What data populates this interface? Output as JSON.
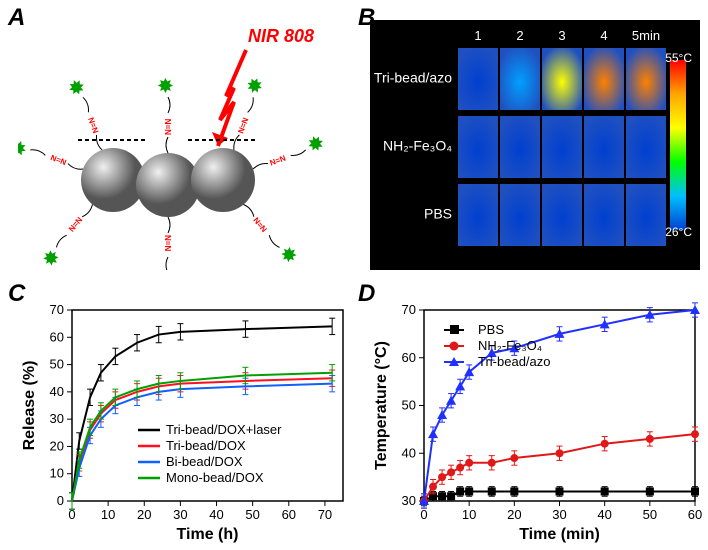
{
  "labels": {
    "A": "A",
    "B": "B",
    "C": "C",
    "D": "D"
  },
  "panelA": {
    "annotation": "NIR 808",
    "annotation_color": "#ff0000",
    "sphere_color": "#888888",
    "nn_color": "#ff0000",
    "star_color": "#00a000"
  },
  "panelB": {
    "background": "#000000",
    "time_labels": [
      "1",
      "2",
      "3",
      "4",
      "5min"
    ],
    "row_labels": [
      "Tri-bead/azo",
      "NH₂-Fe₃O₄",
      "PBS"
    ],
    "colorbar": {
      "max": "55°C",
      "min": "26°C",
      "colors": [
        "#ff0000",
        "#ffa500",
        "#ffff00",
        "#00ff00",
        "#00c0ff",
        "#0040d0"
      ]
    }
  },
  "panelC": {
    "type": "line",
    "xlabel": "Time (h)",
    "ylabel": "Release (%)",
    "xlim": [
      0,
      75
    ],
    "ylim": [
      0,
      70
    ],
    "xticks": [
      0,
      10,
      20,
      30,
      40,
      50,
      60,
      70
    ],
    "yticks": [
      0,
      10,
      20,
      30,
      40,
      50,
      60,
      70
    ],
    "background": "#ffffff",
    "axis_color": "#000000",
    "label_fontsize": 16,
    "tick_fontsize": 13,
    "series": [
      {
        "name": "Tri-bead/DOX+laser",
        "color": "#000000",
        "x": [
          0,
          2,
          5,
          8,
          12,
          18,
          24,
          30,
          48,
          72
        ],
        "y": [
          0,
          22,
          38,
          47,
          53,
          58,
          61,
          62,
          63,
          64
        ],
        "err": 3
      },
      {
        "name": "Tri-bead/DOX",
        "color": "#ff1020",
        "x": [
          0,
          2,
          5,
          8,
          12,
          18,
          24,
          30,
          48,
          72
        ],
        "y": [
          0,
          14,
          26,
          32,
          37,
          40,
          42,
          43,
          44,
          45
        ],
        "err": 3
      },
      {
        "name": "Bi-bead/DOX",
        "color": "#1060ff",
        "x": [
          0,
          2,
          5,
          8,
          12,
          18,
          24,
          30,
          48,
          72
        ],
        "y": [
          0,
          12,
          24,
          30,
          35,
          38,
          40,
          41,
          42,
          43
        ],
        "err": 3
      },
      {
        "name": "Mono-bead/DOX",
        "color": "#00a000",
        "x": [
          0,
          2,
          5,
          8,
          12,
          18,
          24,
          30,
          48,
          72
        ],
        "y": [
          0,
          15,
          27,
          33,
          38,
          41,
          43,
          44,
          46,
          47
        ],
        "err": 3
      }
    ]
  },
  "panelD": {
    "type": "line+markers",
    "xlabel": "Time (min)",
    "ylabel": "Temperature (°C)",
    "xlim": [
      0,
      60
    ],
    "ylim": [
      30,
      70
    ],
    "xticks": [
      0,
      10,
      20,
      30,
      40,
      50,
      60
    ],
    "yticks": [
      30,
      40,
      50,
      60,
      70
    ],
    "background": "#ffffff",
    "axis_color": "#000000",
    "label_fontsize": 16,
    "tick_fontsize": 13,
    "series": [
      {
        "name": "PBS",
        "color": "#000000",
        "marker": "square",
        "x": [
          0,
          2,
          4,
          6,
          8,
          10,
          15,
          20,
          30,
          40,
          50,
          60
        ],
        "y": [
          30,
          31,
          31,
          31,
          32,
          32,
          32,
          32,
          32,
          32,
          32,
          32
        ],
        "err": 1
      },
      {
        "name": "NH₂-Fe₃O₄",
        "color": "#e01818",
        "marker": "circle",
        "x": [
          0,
          2,
          4,
          6,
          8,
          10,
          15,
          20,
          30,
          40,
          50,
          60
        ],
        "y": [
          30,
          33,
          35,
          36,
          37,
          38,
          38,
          39,
          40,
          42,
          43,
          44
        ],
        "err": 1.5
      },
      {
        "name": "Tri-bead/azo",
        "color": "#2030ff",
        "marker": "triangle",
        "x": [
          0,
          2,
          4,
          6,
          8,
          10,
          15,
          20,
          30,
          40,
          50,
          60
        ],
        "y": [
          30,
          44,
          48,
          51,
          54,
          57,
          61,
          62,
          65,
          67,
          69,
          70
        ],
        "err": 1.5
      }
    ]
  }
}
